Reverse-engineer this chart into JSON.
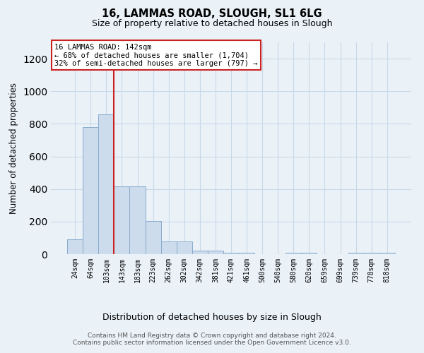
{
  "title_line1": "16, LAMMAS ROAD, SLOUGH, SL1 6LG",
  "title_line2": "Size of property relative to detached houses in Slough",
  "xlabel": "Distribution of detached houses by size in Slough",
  "ylabel": "Number of detached properties",
  "bar_color": "#ccdcec",
  "bar_edge_color": "#88aacc",
  "categories": [
    "24sqm",
    "64sqm",
    "103sqm",
    "143sqm",
    "183sqm",
    "223sqm",
    "262sqm",
    "302sqm",
    "342sqm",
    "381sqm",
    "421sqm",
    "461sqm",
    "500sqm",
    "540sqm",
    "580sqm",
    "620sqm",
    "659sqm",
    "699sqm",
    "739sqm",
    "778sqm",
    "818sqm"
  ],
  "values": [
    90,
    780,
    860,
    415,
    415,
    205,
    80,
    80,
    20,
    20,
    10,
    10,
    0,
    0,
    10,
    10,
    0,
    0,
    10,
    10,
    10
  ],
  "vline_color": "#cc2222",
  "annotation_text": "16 LAMMAS ROAD: 142sqm\n← 68% of detached houses are smaller (1,704)\n32% of semi-detached houses are larger (797) →",
  "annotation_box_color": "#ffffff",
  "annotation_box_edge": "#cc2222",
  "footer_text": "Contains HM Land Registry data © Crown copyright and database right 2024.\nContains public sector information licensed under the Open Government Licence v3.0.",
  "ylim": [
    0,
    1300
  ],
  "yticks": [
    0,
    200,
    400,
    600,
    800,
    1000,
    1200
  ],
  "grid_color": "#c8d8e8",
  "background_color": "#eaf2f8",
  "figsize": [
    6.0,
    5.0
  ],
  "dpi": 100
}
